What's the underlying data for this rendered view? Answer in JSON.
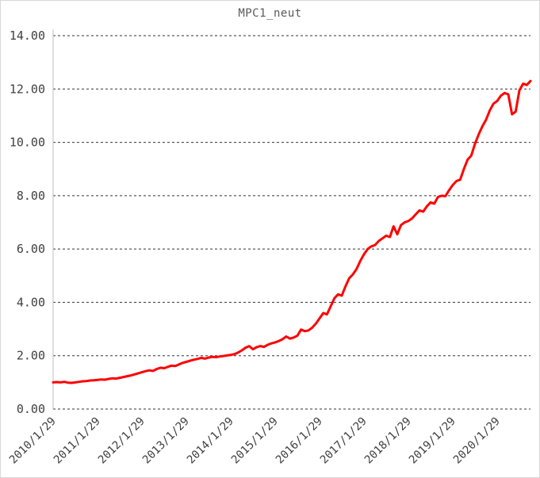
{
  "chart_data": {
    "type": "line",
    "title": "MPC1_neut",
    "xlabel": "",
    "ylabel": "",
    "ylim": [
      0,
      14
    ],
    "y_ticks": [
      0,
      2,
      4,
      6,
      8,
      10,
      12,
      14
    ],
    "y_tick_labels": [
      "0.00",
      "2.00",
      "4.00",
      "6.00",
      "8.00",
      "10.00",
      "12.00",
      "14.00"
    ],
    "x_tick_labels": [
      "2010/1/29",
      "2011/1/29",
      "2012/1/29",
      "2013/1/29",
      "2014/1/29",
      "2015/1/29",
      "2016/1/29",
      "2017/1/29",
      "2018/1/29",
      "2019/1/29",
      "2020/1/29"
    ],
    "x_tick_positions": [
      0,
      12,
      24,
      36,
      48,
      60,
      72,
      84,
      96,
      108,
      120
    ],
    "x_start": "2010/1",
    "x_interval": "monthly",
    "grid": "horizontal-dashed",
    "legend": "none",
    "colors": {
      "line": "#ff0000",
      "gridline": "#333333",
      "axis": "#bfbfbf",
      "tick_text": "#404040",
      "title_text": "#595959",
      "background": "#ffffff"
    },
    "series": [
      {
        "name": "MPC1_neut",
        "color": "#ff0000",
        "values": [
          1.0,
          1.01,
          1.0,
          1.02,
          0.99,
          0.98,
          1.0,
          1.02,
          1.04,
          1.05,
          1.07,
          1.08,
          1.09,
          1.11,
          1.1,
          1.13,
          1.15,
          1.14,
          1.17,
          1.2,
          1.23,
          1.26,
          1.3,
          1.34,
          1.38,
          1.42,
          1.45,
          1.43,
          1.5,
          1.55,
          1.53,
          1.58,
          1.63,
          1.61,
          1.67,
          1.73,
          1.77,
          1.81,
          1.85,
          1.88,
          1.92,
          1.89,
          1.93,
          1.96,
          1.94,
          1.97,
          1.99,
          2.01,
          2.03,
          2.06,
          2.12,
          2.2,
          2.3,
          2.36,
          2.24,
          2.32,
          2.36,
          2.33,
          2.41,
          2.46,
          2.5,
          2.55,
          2.62,
          2.72,
          2.64,
          2.68,
          2.75,
          2.98,
          2.92,
          2.95,
          3.05,
          3.2,
          3.4,
          3.6,
          3.55,
          3.85,
          4.15,
          4.3,
          4.25,
          4.6,
          4.9,
          5.05,
          5.25,
          5.55,
          5.8,
          6.0,
          6.1,
          6.15,
          6.3,
          6.4,
          6.5,
          6.45,
          6.85,
          6.55,
          6.9,
          7.0,
          7.05,
          7.15,
          7.3,
          7.45,
          7.4,
          7.6,
          7.75,
          7.7,
          7.95,
          8.0,
          7.98,
          8.2,
          8.4,
          8.55,
          8.6,
          9.0,
          9.35,
          9.5,
          9.95,
          10.3,
          10.6,
          10.85,
          11.2,
          11.45,
          11.55,
          11.75,
          11.85,
          11.8,
          11.05,
          11.15,
          11.95,
          12.2,
          12.15,
          12.3
        ]
      }
    ]
  }
}
